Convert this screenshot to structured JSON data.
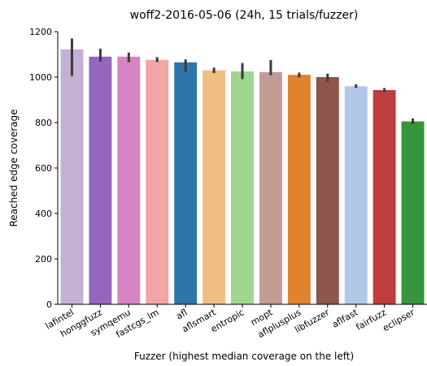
{
  "chart_data": {
    "type": "bar",
    "title": "woff2-2016-05-06 (24h, 15 trials/fuzzer)",
    "xlabel": "Fuzzer (highest median coverage on the left)",
    "ylabel": "Reached edge coverage",
    "ylim": [
      0,
      1200
    ],
    "yticks": [
      0,
      200,
      400,
      600,
      800,
      1000,
      1200
    ],
    "grid": false,
    "legend": "none",
    "categories": [
      "lafintel",
      "honggfuzz",
      "symqemu",
      "fastcgs_lm",
      "afl",
      "aflsmart",
      "entropic",
      "mopt",
      "aflplusplus",
      "libfuzzer",
      "aflfast",
      "fairfuzz",
      "eclipser"
    ],
    "values": [
      1122,
      1090,
      1090,
      1076,
      1065,
      1030,
      1025,
      1022,
      1010,
      1000,
      960,
      943,
      805
    ],
    "error_low": [
      1005,
      1068,
      1066,
      1066,
      1023,
      1018,
      991,
      1008,
      999,
      980,
      952,
      934,
      793
    ],
    "error_high": [
      1170,
      1125,
      1108,
      1088,
      1078,
      1042,
      1062,
      1075,
      1020,
      1015,
      968,
      952,
      818
    ],
    "colors": [
      "#c5b0d5",
      "#9467bd",
      "#d685c2",
      "#f4a4a4",
      "#2e76aa",
      "#f0bd83",
      "#9fd68f",
      "#c29c94",
      "#e0822e",
      "#8c564b",
      "#b0c7e8",
      "#c03d3d",
      "#35953a"
    ]
  }
}
